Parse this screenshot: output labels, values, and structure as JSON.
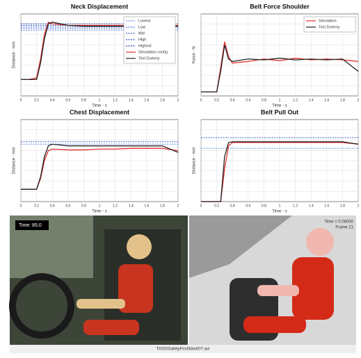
{
  "chart_data": [
    {
      "type": "line",
      "title": "Neck Displacement",
      "xlabel": "Time - s",
      "ylabel": "Distance - mm",
      "legend": "upper right",
      "grid": true,
      "x": [
        0,
        0.1,
        0.2,
        0.25,
        0.3,
        0.35,
        0.4,
        0.6,
        0.8,
        1,
        1.2,
        1.4,
        1.6,
        1.8,
        2
      ],
      "xlim": [
        0,
        2
      ],
      "xticks": [
        0,
        0.2,
        0.4,
        0.6,
        0.8,
        1,
        1.2,
        1.4,
        1.6,
        1.8,
        2
      ],
      "ylim": [
        0,
        100
      ],
      "series": [
        {
          "name": "Lowest",
          "color": "#6f8fe6",
          "dash": true,
          "values": [
            80,
            80,
            80,
            80,
            80,
            80,
            80,
            80,
            80,
            80,
            80,
            80,
            80,
            80,
            80
          ]
        },
        {
          "name": "Low",
          "color": "#4f74dc",
          "dash": true,
          "values": [
            82,
            82,
            82,
            82,
            82,
            82,
            82,
            82,
            82,
            82,
            82,
            82,
            82,
            82,
            82
          ]
        },
        {
          "name": "Mid",
          "color": "#3a5fcd",
          "dash": true,
          "values": [
            84,
            84,
            84,
            84,
            84,
            84,
            84,
            84,
            84,
            84,
            84,
            84,
            84,
            84,
            84
          ]
        },
        {
          "name": "High",
          "color": "#2b4fc0",
          "dash": true,
          "values": [
            86,
            86,
            86,
            86,
            86,
            86,
            86,
            86,
            86,
            86,
            86,
            86,
            86,
            86,
            86
          ]
        },
        {
          "name": "Highest",
          "color": "#1f3fae",
          "dash": true,
          "values": [
            88,
            88,
            88,
            88,
            88,
            88,
            88,
            88,
            88,
            88,
            88,
            88,
            88,
            88,
            88
          ]
        },
        {
          "name": "Simulation config",
          "color": "#e03030",
          "values": [
            20,
            20,
            22,
            45,
            75,
            90,
            88,
            86,
            86,
            86,
            86,
            86,
            86,
            86,
            86
          ]
        },
        {
          "name": "Test Dummy",
          "color": "#222222",
          "values": [
            20,
            20,
            20,
            40,
            70,
            88,
            90,
            86,
            85,
            85,
            85,
            85,
            85,
            85,
            85
          ]
        }
      ]
    },
    {
      "type": "line",
      "title": "Belt Force Shoulder",
      "xlabel": "Time - s",
      "ylabel": "Force - N",
      "legend": "upper right",
      "grid": true,
      "x": [
        0,
        0.1,
        0.2,
        0.25,
        0.3,
        0.35,
        0.4,
        0.6,
        0.8,
        1,
        1.2,
        1.4,
        1.6,
        1.8,
        2
      ],
      "xlim": [
        0,
        2
      ],
      "xticks": [
        0,
        0.2,
        0.4,
        0.6,
        0.8,
        1,
        1.2,
        1.4,
        1.6,
        1.8,
        2
      ],
      "ylim": [
        0,
        100
      ],
      "series": [
        {
          "name": "Simulation",
          "color": "#e03030",
          "values": [
            5,
            5,
            5,
            35,
            66,
            48,
            40,
            42,
            45,
            43,
            46,
            44,
            45,
            44,
            42
          ]
        },
        {
          "name": "Test Dummy",
          "color": "#222222",
          "values": [
            5,
            5,
            5,
            30,
            62,
            45,
            42,
            45,
            44,
            46,
            44,
            45,
            44,
            45,
            30
          ]
        }
      ]
    },
    {
      "type": "line",
      "title": "Chest Displacement",
      "xlabel": "Time - s",
      "ylabel": "Distance - mm",
      "grid": true,
      "x": [
        0,
        0.1,
        0.2,
        0.25,
        0.3,
        0.35,
        0.4,
        0.6,
        0.8,
        1,
        1.2,
        1.4,
        1.6,
        1.8,
        2
      ],
      "xlim": [
        0,
        2
      ],
      "xticks": [
        0,
        0.2,
        0.4,
        0.6,
        0.8,
        1,
        1.2,
        1.4,
        1.6,
        1.8,
        2
      ],
      "ylim": [
        0,
        100
      ],
      "series": [
        {
          "color": "#6f8fe6",
          "dash": true,
          "values": [
            70,
            70,
            70,
            70,
            70,
            70,
            70,
            70,
            70,
            70,
            70,
            70,
            70,
            70,
            70
          ]
        },
        {
          "color": "#3a5fcd",
          "dash": true,
          "values": [
            73,
            73,
            73,
            73,
            73,
            73,
            73,
            73,
            73,
            73,
            73,
            73,
            73,
            73,
            73
          ]
        },
        {
          "color": "#e03030",
          "values": [
            15,
            15,
            15,
            28,
            50,
            62,
            64,
            63,
            63,
            64,
            64,
            65,
            65,
            65,
            62
          ]
        },
        {
          "color": "#222222",
          "values": [
            15,
            15,
            15,
            30,
            55,
            68,
            70,
            68,
            68,
            68,
            68,
            68,
            68,
            68,
            60
          ]
        }
      ]
    },
    {
      "type": "line",
      "title": "Belt Pull Out",
      "xlabel": "Time - s",
      "ylabel": "Distance - mm",
      "grid": true,
      "x": [
        0,
        0.1,
        0.2,
        0.25,
        0.3,
        0.35,
        0.4,
        0.6,
        0.8,
        1,
        1.2,
        1.4,
        1.6,
        1.8,
        2
      ],
      "xlim": [
        0,
        2
      ],
      "xticks": [
        0,
        0.2,
        0.4,
        0.6,
        0.8,
        1,
        1.2,
        1.4,
        1.6,
        1.8,
        2
      ],
      "ylim": [
        0,
        100
      ],
      "series": [
        {
          "color": "#6f8fe6",
          "dash": true,
          "values": [
            65,
            65,
            65,
            65,
            65,
            65,
            65,
            65,
            65,
            65,
            65,
            65,
            65,
            65,
            65
          ]
        },
        {
          "color": "#3a5fcd",
          "dash": true,
          "values": [
            78,
            78,
            78,
            78,
            78,
            78,
            78,
            78,
            78,
            78,
            78,
            78,
            78,
            78,
            78
          ]
        },
        {
          "color": "#e03030",
          "values": [
            0,
            0,
            0,
            0,
            40,
            68,
            72,
            72,
            72,
            72,
            72,
            72,
            72,
            72,
            70
          ]
        },
        {
          "color": "#222222",
          "values": [
            0,
            0,
            0,
            0,
            55,
            72,
            73,
            73,
            73,
            73,
            73,
            73,
            73,
            73,
            70
          ]
        }
      ]
    }
  ],
  "screens": {
    "left_time": "Time: 85.0",
    "right_time": "Time = 0.08000",
    "right_frame": "Frame 21",
    "caption": "TASS\\SafetyFirst\\Mod\\07.avi"
  }
}
